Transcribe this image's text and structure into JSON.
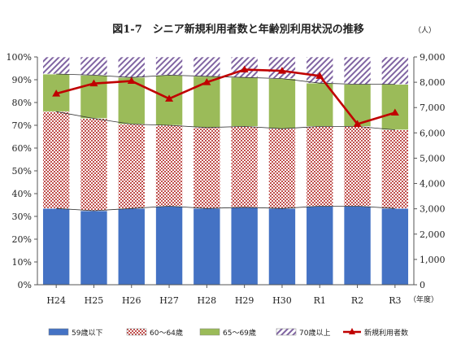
{
  "chart_data": {
    "type": "bar",
    "stacked": true,
    "percent": true,
    "title": "図1-7　シニア新規利用者数と年齢別利用状況の推移",
    "y2_unit": "（人）",
    "x_unit": "（年度）",
    "categories": [
      "H24",
      "H25",
      "H26",
      "H27",
      "H28",
      "H29",
      "H30",
      "R1",
      "R2",
      "R3"
    ],
    "y_ticks": [
      "0%",
      "10%",
      "20%",
      "30%",
      "40%",
      "50%",
      "60%",
      "70%",
      "80%",
      "90%",
      "100%"
    ],
    "y2_ticks": [
      "0",
      "1,000",
      "2,000",
      "3,000",
      "4,000",
      "5,000",
      "6,000",
      "7,000",
      "8,000",
      "9,000"
    ],
    "ylim": [
      0,
      100
    ],
    "y2lim": [
      0,
      9000
    ],
    "series": [
      {
        "name": "59歳以下",
        "color": "#4472C4",
        "pattern": "solid",
        "values": [
          33.5,
          32.5,
          33.5,
          34.5,
          33.5,
          34.0,
          33.5,
          34.5,
          34.5,
          33.5
        ]
      },
      {
        "name": "60～64歳",
        "color": "#C0504D",
        "pattern": "checker",
        "values": [
          42.5,
          40.5,
          37.0,
          35.5,
          35.5,
          35.5,
          35.0,
          35.0,
          35.0,
          34.5
        ]
      },
      {
        "name": "65～69歳",
        "color": "#9BBB59",
        "pattern": "solid",
        "values": [
          16.5,
          19.0,
          20.5,
          22.0,
          22.5,
          21.5,
          22.0,
          19.0,
          18.5,
          20.0
        ]
      },
      {
        "name": "70歳以上",
        "color": "#8064A2",
        "pattern": "diagonal",
        "values": [
          7.5,
          8.0,
          9.0,
          8.0,
          8.5,
          9.0,
          9.5,
          11.5,
          12.0,
          12.0
        ]
      }
    ],
    "line_series": {
      "name": "新規利用者数",
      "color": "#C00000",
      "axis": "right",
      "values": [
        7550,
        7950,
        8050,
        7350,
        8000,
        8500,
        8450,
        8250,
        6350,
        6800
      ]
    },
    "grid": true,
    "legend_position": "bottom"
  }
}
